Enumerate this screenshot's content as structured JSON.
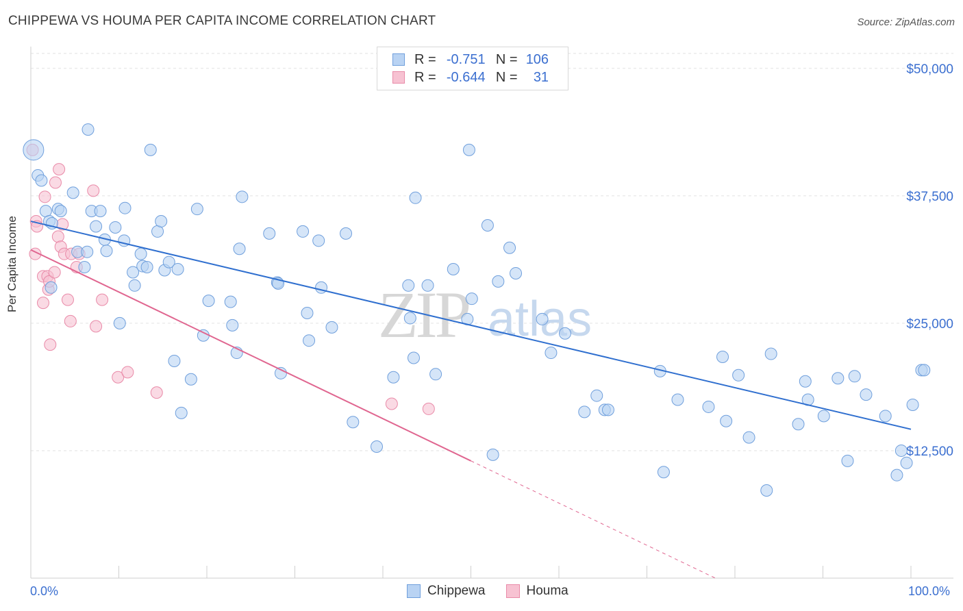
{
  "title": "CHIPPEWA VS HOUMA PER CAPITA INCOME CORRELATION CHART",
  "source": "Source: ZipAtlas.com",
  "watermark": {
    "zip": "ZIP",
    "atlas": "atlas"
  },
  "colors": {
    "chippewa_fill": "#b9d3f3",
    "chippewa_stroke": "#6f9fdc",
    "chippewa_line": "#2f6fcf",
    "houma_fill": "#f7c2d2",
    "houma_stroke": "#e98aa8",
    "houma_line": "#e06690",
    "axis_label": "#3b6fd0"
  },
  "legend": {
    "rows": [
      {
        "r_label": "R =",
        "r_value": "-0.751",
        "n_label": "N =",
        "n_value": "106"
      },
      {
        "r_label": "R =",
        "r_value": "-0.644",
        "n_label": "N =",
        "n_value": "31"
      }
    ]
  },
  "bottom_legend": {
    "series1": "Chippewa",
    "series2": "Houma"
  },
  "x_axis": {
    "min_label": "0.0%",
    "max_label": "100.0%"
  },
  "chart_data": {
    "type": "scatter",
    "title": "CHIPPEWA VS HOUMA PER CAPITA INCOME CORRELATION CHART",
    "xlabel": "",
    "ylabel": "Per Capita Income",
    "xlim": [
      0,
      100
    ],
    "ylim": [
      0,
      52000
    ],
    "y_ticks": [
      12500,
      25000,
      37500,
      50000
    ],
    "y_tick_labels": [
      "$12,500",
      "$25,000",
      "$37,500",
      "$50,000"
    ],
    "x_tick_labels": [
      "0.0%",
      "100.0%"
    ],
    "grid": true,
    "legend_position": "top-center",
    "series": [
      {
        "name": "Chippewa",
        "color": "#6f9fdc",
        "trend": {
          "x": [
            0,
            100
          ],
          "y": [
            35000,
            14600
          ]
        },
        "points": [
          [
            0.3,
            42000
          ],
          [
            0.8,
            39500
          ],
          [
            1.2,
            39000
          ],
          [
            1.7,
            36000
          ],
          [
            2.1,
            35000
          ],
          [
            2.3,
            28500
          ],
          [
            2.4,
            34800
          ],
          [
            3.1,
            36200
          ],
          [
            3.4,
            36000
          ],
          [
            4.8,
            37800
          ],
          [
            5.3,
            32000
          ],
          [
            6.1,
            30500
          ],
          [
            6.4,
            32000
          ],
          [
            6.5,
            44000
          ],
          [
            6.9,
            36000
          ],
          [
            7.4,
            34500
          ],
          [
            7.9,
            36000
          ],
          [
            8.4,
            33200
          ],
          [
            8.6,
            32100
          ],
          [
            9.6,
            34400
          ],
          [
            10.1,
            25000
          ],
          [
            10.6,
            33100
          ],
          [
            10.7,
            36300
          ],
          [
            11.6,
            30000
          ],
          [
            11.8,
            28700
          ],
          [
            12.5,
            31800
          ],
          [
            12.7,
            30600
          ],
          [
            13.2,
            30500
          ],
          [
            13.6,
            42000
          ],
          [
            14.4,
            34000
          ],
          [
            14.8,
            35000
          ],
          [
            15.2,
            30200
          ],
          [
            15.7,
            31000
          ],
          [
            16.3,
            21300
          ],
          [
            16.7,
            30300
          ],
          [
            17.1,
            16200
          ],
          [
            18.2,
            19500
          ],
          [
            18.9,
            36200
          ],
          [
            19.6,
            23800
          ],
          [
            20.2,
            27200
          ],
          [
            22.7,
            27100
          ],
          [
            22.9,
            24800
          ],
          [
            23.4,
            22100
          ],
          [
            23.7,
            32300
          ],
          [
            24.0,
            37400
          ],
          [
            27.1,
            33800
          ],
          [
            28.0,
            29000
          ],
          [
            28.1,
            28900
          ],
          [
            28.4,
            20100
          ],
          [
            30.9,
            34000
          ],
          [
            31.4,
            26000
          ],
          [
            31.6,
            23300
          ],
          [
            32.7,
            33100
          ],
          [
            33.0,
            28500
          ],
          [
            34.2,
            24600
          ],
          [
            35.8,
            33800
          ],
          [
            36.6,
            15300
          ],
          [
            39.3,
            12900
          ],
          [
            41.2,
            19700
          ],
          [
            42.9,
            28700
          ],
          [
            43.1,
            25500
          ],
          [
            43.5,
            21600
          ],
          [
            43.7,
            37300
          ],
          [
            45.1,
            28700
          ],
          [
            46.0,
            20000
          ],
          [
            48.0,
            30300
          ],
          [
            49.6,
            25400
          ],
          [
            49.8,
            42000
          ],
          [
            50.1,
            27400
          ],
          [
            51.9,
            34600
          ],
          [
            52.5,
            12100
          ],
          [
            53.1,
            29100
          ],
          [
            54.4,
            32400
          ],
          [
            55.1,
            29900
          ],
          [
            58.1,
            25400
          ],
          [
            59.1,
            22100
          ],
          [
            60.7,
            24000
          ],
          [
            62.9,
            16300
          ],
          [
            64.3,
            17900
          ],
          [
            65.2,
            16500
          ],
          [
            65.6,
            16500
          ],
          [
            71.5,
            20300
          ],
          [
            71.9,
            10400
          ],
          [
            73.5,
            17500
          ],
          [
            77.0,
            16800
          ],
          [
            78.6,
            21700
          ],
          [
            79.0,
            15400
          ],
          [
            80.4,
            19900
          ],
          [
            81.6,
            13800
          ],
          [
            83.6,
            8600
          ],
          [
            84.1,
            22000
          ],
          [
            87.2,
            15100
          ],
          [
            88.0,
            19300
          ],
          [
            88.3,
            17500
          ],
          [
            90.1,
            15900
          ],
          [
            91.7,
            19600
          ],
          [
            92.8,
            11500
          ],
          [
            93.6,
            19800
          ],
          [
            94.9,
            18000
          ],
          [
            97.1,
            15900
          ],
          [
            98.4,
            10100
          ],
          [
            98.9,
            12500
          ],
          [
            99.5,
            11300
          ],
          [
            100.2,
            17000
          ],
          [
            101.2,
            20400
          ],
          [
            101.5,
            20400
          ]
        ]
      },
      {
        "name": "Houma",
        "color": "#e98aa8",
        "trend": {
          "x": [
            0,
            50
          ],
          "y": [
            32200,
            11500
          ]
        },
        "points": [
          [
            0.2,
            42000
          ],
          [
            0.5,
            31800
          ],
          [
            0.6,
            35000
          ],
          [
            0.7,
            34500
          ],
          [
            1.4,
            27000
          ],
          [
            1.4,
            29600
          ],
          [
            1.6,
            37400
          ],
          [
            1.9,
            29600
          ],
          [
            2.0,
            28300
          ],
          [
            2.1,
            29100
          ],
          [
            2.2,
            22900
          ],
          [
            2.7,
            30000
          ],
          [
            2.8,
            38800
          ],
          [
            3.1,
            33500
          ],
          [
            3.2,
            40100
          ],
          [
            3.4,
            32500
          ],
          [
            3.6,
            34700
          ],
          [
            3.8,
            31800
          ],
          [
            4.2,
            27300
          ],
          [
            4.5,
            25200
          ],
          [
            4.6,
            31800
          ],
          [
            5.2,
            30500
          ],
          [
            5.5,
            31800
          ],
          [
            7.1,
            38000
          ],
          [
            7.4,
            24700
          ],
          [
            8.1,
            27300
          ],
          [
            9.9,
            19700
          ],
          [
            11.0,
            20200
          ],
          [
            14.3,
            18200
          ],
          [
            41.0,
            17100
          ],
          [
            45.2,
            16600
          ]
        ]
      }
    ]
  }
}
